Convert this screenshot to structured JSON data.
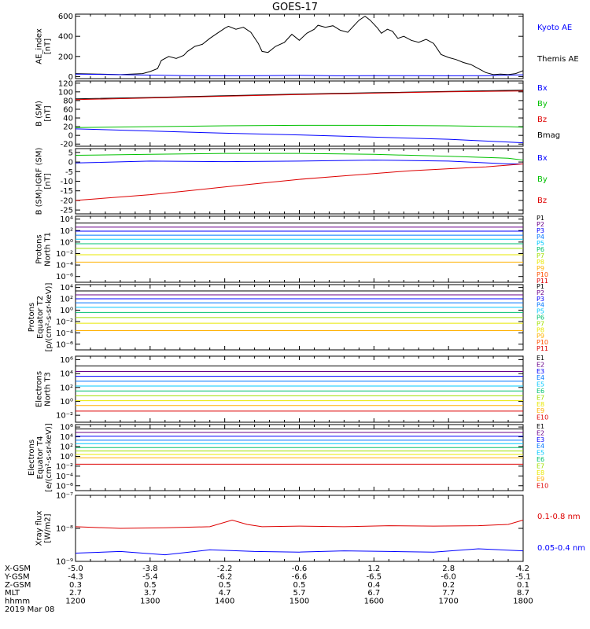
{
  "title": "GOES-17",
  "chart_data": {
    "type": "line",
    "x_range": [
      "1200",
      "1800"
    ],
    "x_ticks": [
      "1200",
      "1300",
      "1400",
      "1500",
      "1600",
      "1700",
      "1800"
    ],
    "panels": [
      {
        "key": "ae",
        "ylabel": [
          "AE_index",
          "[nT]"
        ],
        "yscale": "linear",
        "ylim": [
          -20,
          620
        ],
        "ticks": [
          "0",
          "200",
          "400",
          "600"
        ],
        "tick_values": [
          0,
          200,
          400,
          600
        ],
        "legend": [
          {
            "label": "Kyoto AE",
            "color": "#0000ff"
          },
          {
            "label": "Themis AE",
            "color": "#000000"
          }
        ],
        "series": [
          {
            "name": "Themis AE",
            "color": "#000000",
            "x": [
              0,
              30,
              60,
              90,
              100,
              110,
              115,
              125,
              135,
              145,
              150,
              160,
              170,
              180,
              190,
              200,
              205,
              215,
              225,
              235,
              245,
              250,
              258,
              268,
              280,
              290,
              300,
              310,
              320,
              325,
              335,
              345,
              355,
              365,
              375,
              380,
              388,
              395,
              405,
              410,
              418,
              425,
              432,
              440,
              450,
              460,
              470,
              480,
              490,
              500,
              510,
              520,
              530,
              540,
              550,
              560,
              570,
              580,
              590,
              600
            ],
            "y": [
              30,
              25,
              20,
              30,
              50,
              80,
              160,
              200,
              180,
              210,
              250,
              300,
              320,
              380,
              430,
              480,
              500,
              470,
              490,
              440,
              330,
              250,
              240,
              300,
              340,
              420,
              360,
              430,
              470,
              510,
              490,
              505,
              460,
              440,
              520,
              560,
              600,
              560,
              480,
              430,
              470,
              450,
              380,
              400,
              360,
              340,
              370,
              330,
              220,
              190,
              170,
              140,
              120,
              80,
              40,
              20,
              25,
              20,
              30,
              60
            ]
          },
          {
            "name": "Kyoto AE",
            "color": "#0000ff",
            "x": [
              0,
              50,
              100,
              150,
              200,
              250,
              300,
              350,
              400,
              450,
              500,
              550,
              600
            ],
            "y": [
              25,
              20,
              15,
              10,
              8,
              10,
              12,
              8,
              10,
              10,
              8,
              10,
              18
            ]
          }
        ]
      },
      {
        "key": "bsm",
        "ylabel": [
          "B (SM)",
          "[nT]"
        ],
        "yscale": "linear",
        "ylim": [
          -25,
          125
        ],
        "ticks": [
          "-20",
          "0",
          "20",
          "40",
          "60",
          "80",
          "100",
          "120"
        ],
        "tick_values": [
          -20,
          0,
          20,
          40,
          60,
          80,
          100,
          120
        ],
        "legend": [
          {
            "label": "Bx",
            "color": "#0000ff"
          },
          {
            "label": "By",
            "color": "#00c000"
          },
          {
            "label": "Bz",
            "color": "#dd0000"
          },
          {
            "label": "Bmag",
            "color": "#000000"
          }
        ],
        "series": [
          {
            "name": "Bmag",
            "color": "#000000",
            "x": [
              0,
              100,
              200,
              300,
              400,
              500,
              600
            ],
            "y": [
              84,
              87,
              91,
              95,
              98,
              101,
              104
            ]
          },
          {
            "name": "Bz",
            "color": "#dd0000",
            "x": [
              0,
              100,
              200,
              300,
              400,
              500,
              600
            ],
            "y": [
              82,
              86,
              90,
              94,
              97,
              100,
              102
            ]
          },
          {
            "name": "By",
            "color": "#00c000",
            "x": [
              0,
              100,
              200,
              300,
              400,
              500,
              580,
              600
            ],
            "y": [
              18,
              20,
              22,
              23,
              23,
              22,
              20,
              19
            ]
          },
          {
            "name": "Bx",
            "color": "#0000ff",
            "x": [
              0,
              100,
              200,
              300,
              400,
              500,
              600
            ],
            "y": [
              15,
              10,
              5,
              1,
              -4,
              -9,
              -17
            ]
          }
        ]
      },
      {
        "key": "bigrf",
        "ylabel": [
          "B (SM)-IGRF (SM)",
          "[nT]"
        ],
        "yscale": "linear",
        "ylim": [
          -27,
          7
        ],
        "ticks": [
          "-25",
          "-20",
          "-15",
          "-10",
          "-5",
          "0",
          "5"
        ],
        "tick_values": [
          -25,
          -20,
          -15,
          -10,
          -5,
          0,
          5
        ],
        "legend": [
          {
            "label": "Bx",
            "color": "#0000ff"
          },
          {
            "label": "By",
            "color": "#00c000"
          },
          {
            "label": "Bz",
            "color": "#dd0000"
          }
        ],
        "series": [
          {
            "name": "By",
            "color": "#00c000",
            "x": [
              0,
              100,
              200,
              300,
              400,
              500,
              580,
              600
            ],
            "y": [
              3.5,
              4,
              4.5,
              4.5,
              4,
              3,
              2,
              1
            ]
          },
          {
            "name": "Bx",
            "color": "#0000ff",
            "x": [
              0,
              100,
              200,
              300,
              400,
              500,
              580,
              600
            ],
            "y": [
              -0.5,
              0.5,
              0.2,
              0.5,
              1,
              0.5,
              -1,
              -1
            ]
          },
          {
            "name": "Bz",
            "color": "#dd0000",
            "x": [
              0,
              50,
              100,
              150,
              200,
              250,
              300,
              350,
              400,
              450,
              500,
              550,
              600
            ],
            "y": [
              -20,
              -18.5,
              -17,
              -15,
              -13,
              -11,
              -9,
              -7.5,
              -6,
              -4.5,
              -3.5,
              -2.5,
              -1
            ]
          }
        ]
      },
      {
        "key": "pn",
        "ylabel": [
          "Protons",
          "North T1"
        ],
        "yscale": "log",
        "ylim": [
          -7,
          4.5
        ],
        "ticks": [
          "10⁴",
          "10²",
          "10⁰",
          "10⁻²",
          "10⁻⁴",
          "10⁻⁶"
        ],
        "tick_values": [
          4,
          2,
          0,
          -2,
          -4,
          -6
        ],
        "legend": [
          {
            "label": "P1",
            "color": "#000000"
          },
          {
            "label": "P2",
            "color": "#6a008a"
          },
          {
            "label": "P3",
            "color": "#0000ff"
          },
          {
            "label": "P4",
            "color": "#0077ff"
          },
          {
            "label": "P5",
            "color": "#00c8ff"
          },
          {
            "label": "P6",
            "color": "#00c070"
          },
          {
            "label": "P7",
            "color": "#a0e000"
          },
          {
            "label": "P8",
            "color": "#e8e800"
          },
          {
            "label": "P9",
            "color": "#ffb000"
          },
          {
            "label": "P10",
            "color": "#ff5000"
          },
          {
            "label": "P11",
            "color": "#dd0000"
          }
        ],
        "levels": [
          3.3,
          2.6,
          1.9,
          1.2,
          0.5,
          -0.3,
          -1.1,
          -2.2,
          -3.5
        ]
      },
      {
        "key": "pe",
        "ylabel": [
          "Protons",
          "Equator T2",
          "[p/(cm²-s-sr-keV)]"
        ],
        "yscale": "log",
        "ylim": [
          -7,
          4.5
        ],
        "ticks": [
          "10⁴",
          "10²",
          "10⁰",
          "10⁻²",
          "10⁻⁴",
          "10⁻⁶"
        ],
        "tick_values": [
          4,
          2,
          0,
          -2,
          -4,
          -6
        ],
        "legend": [
          {
            "label": "P1",
            "color": "#000000"
          },
          {
            "label": "P2",
            "color": "#6a008a"
          },
          {
            "label": "P3",
            "color": "#0000ff"
          },
          {
            "label": "P4",
            "color": "#0077ff"
          },
          {
            "label": "P5",
            "color": "#00c8ff"
          },
          {
            "label": "P6",
            "color": "#00c070"
          },
          {
            "label": "P7",
            "color": "#a0e000"
          },
          {
            "label": "P8",
            "color": "#e8e800"
          },
          {
            "label": "P9",
            "color": "#ffb000"
          },
          {
            "label": "P10",
            "color": "#ff5000"
          },
          {
            "label": "P11",
            "color": "#dd0000"
          }
        ],
        "levels": [
          3.4,
          2.7,
          2.0,
          1.3,
          0.5,
          -0.4,
          -1.3,
          -2.3,
          -3.6
        ]
      },
      {
        "key": "en",
        "ylabel": [
          "Electrons",
          "North T3"
        ],
        "yscale": "log",
        "ylim": [
          -3,
          6.5
        ],
        "ticks": [
          "10⁶",
          "10⁴",
          "10²",
          "10⁰",
          "10⁻²"
        ],
        "tick_values": [
          6,
          4,
          2,
          0,
          -2
        ],
        "legend": [
          {
            "label": "E1",
            "color": "#000000"
          },
          {
            "label": "E2",
            "color": "#6a008a"
          },
          {
            "label": "E3",
            "color": "#0000ff"
          },
          {
            "label": "E4",
            "color": "#0077ff"
          },
          {
            "label": "E5",
            "color": "#00c8ff"
          },
          {
            "label": "E6",
            "color": "#00c070"
          },
          {
            "label": "E7",
            "color": "#a0e000"
          },
          {
            "label": "E8",
            "color": "#e8e800"
          },
          {
            "label": "E9",
            "color": "#ffb000"
          },
          {
            "label": "E10",
            "color": "#dd0000"
          }
        ],
        "levels": [
          5.1,
          4.3,
          3.6,
          2.9,
          2.2,
          1.5,
          0.8,
          0.1,
          -0.6,
          -1.4
        ]
      },
      {
        "key": "ee",
        "ylabel": [
          "Electrons",
          "Equator T4",
          "[e/(cm²-s-sr-keV)]"
        ],
        "yscale": "log",
        "ylim": [
          -7,
          6.5
        ],
        "ticks": [
          "10⁶",
          "10⁴",
          "10²",
          "10⁰",
          "10⁻²",
          "10⁻⁴",
          "10⁻⁶"
        ],
        "tick_values": [
          6,
          4,
          2,
          0,
          -2,
          -4,
          -6
        ],
        "legend": [
          {
            "label": "E1",
            "color": "#000000"
          },
          {
            "label": "E2",
            "color": "#6a008a"
          },
          {
            "label": "E3",
            "color": "#0000ff"
          },
          {
            "label": "E4",
            "color": "#0077ff"
          },
          {
            "label": "E5",
            "color": "#00c8ff"
          },
          {
            "label": "E6",
            "color": "#00c070"
          },
          {
            "label": "E7",
            "color": "#a0e000"
          },
          {
            "label": "E8",
            "color": "#e8e800"
          },
          {
            "label": "E9",
            "color": "#ffb000"
          },
          {
            "label": "E10",
            "color": "#dd0000"
          }
        ],
        "levels": [
          5.6,
          4.9,
          4.1,
          3.3,
          2.6,
          1.8,
          1.1,
          0.4,
          -0.3,
          -1.6
        ]
      },
      {
        "key": "xray",
        "ylabel": [
          "Xray flux",
          "[W/m2]"
        ],
        "yscale": "log",
        "ylim": [
          -9,
          -7
        ],
        "ticks": [
          "10⁻⁷",
          "10⁻⁸",
          "10⁻⁹"
        ],
        "tick_values": [
          -7,
          -8,
          -9
        ],
        "legend": [
          {
            "label": "0.1-0.8 nm",
            "color": "#dd0000"
          },
          {
            "label": "0.05-0.4 nm",
            "color": "#0000ff"
          }
        ],
        "series": [
          {
            "name": "0.1-0.8 nm",
            "color": "#dd0000",
            "x": [
              0,
              60,
              120,
              180,
              210,
              230,
              250,
              300,
              360,
              420,
              480,
              540,
              580,
              600
            ],
            "y": [
              -7.95,
              -8.0,
              -7.98,
              -7.95,
              -7.75,
              -7.88,
              -7.95,
              -7.93,
              -7.95,
              -7.92,
              -7.93,
              -7.92,
              -7.88,
              -7.75
            ]
          },
          {
            "name": "0.05-0.4 nm",
            "color": "#0000ff",
            "x": [
              0,
              60,
              120,
              180,
              240,
              300,
              360,
              420,
              480,
              540,
              600
            ],
            "y": [
              -8.75,
              -8.7,
              -8.8,
              -8.65,
              -8.7,
              -8.72,
              -8.68,
              -8.7,
              -8.72,
              -8.62,
              -8.68
            ]
          }
        ]
      }
    ]
  },
  "ephemeris": {
    "rows": [
      {
        "label": "X-GSM",
        "values": [
          "-5.0",
          "-3.8",
          "-2.2",
          "-0.6",
          "1.2",
          "2.8",
          "4.2"
        ]
      },
      {
        "label": "Y-GSM",
        "values": [
          "-4.3",
          "-5.4",
          "-6.2",
          "-6.6",
          "-6.5",
          "-6.0",
          "-5.1"
        ]
      },
      {
        "label": "Z-GSM",
        "values": [
          "0.3",
          "0.5",
          "0.5",
          "0.5",
          "0.4",
          "0.2",
          "0.1"
        ]
      },
      {
        "label": "MLT",
        "values": [
          "2.7",
          "3.7",
          "4.7",
          "5.7",
          "6.7",
          "7.7",
          "8.7"
        ]
      },
      {
        "label": "hhmm",
        "values": [
          "1200",
          "1300",
          "1400",
          "1500",
          "1600",
          "1700",
          "1800"
        ]
      }
    ],
    "date": "2019 Mar 08"
  }
}
